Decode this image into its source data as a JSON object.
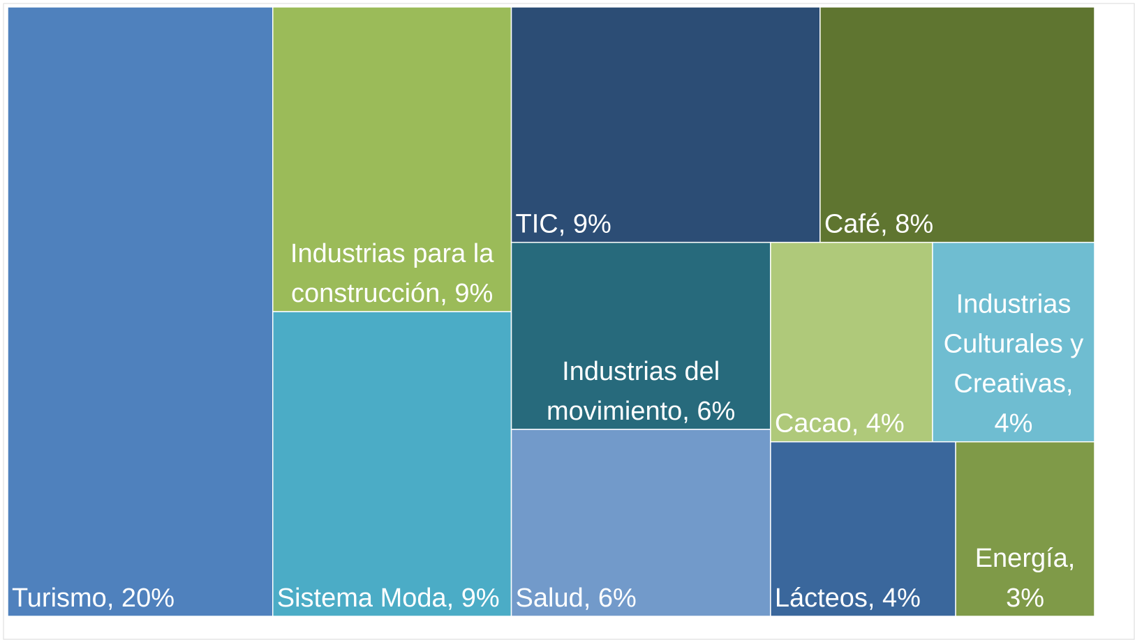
{
  "chart_data": {
    "type": "treemap",
    "values": [
      20,
      9,
      9,
      9,
      8,
      6,
      6,
      4,
      4,
      4,
      3
    ],
    "value_labels": [
      "Turismo, 20%",
      "Industrias para la construcción, 9%",
      "Sistema Moda, 9%",
      "TIC, 9%",
      "Café, 8%",
      "Industrias del movimiento, 6%",
      "Salud, 6%",
      "Cacao, 4%",
      "Industrias Culturales y Creativas, 4%",
      "Lácteos, 4%",
      "Energía, 3%"
    ],
    "colors": [
      "#4f81bd",
      "#9bbb59",
      "#4bacc6",
      "#2c4d75",
      "#5f7530",
      "#276a7c",
      "#729aca",
      "#afc97a",
      "#6fbdd1",
      "#3a679c",
      "#7f9a48"
    ]
  }
}
